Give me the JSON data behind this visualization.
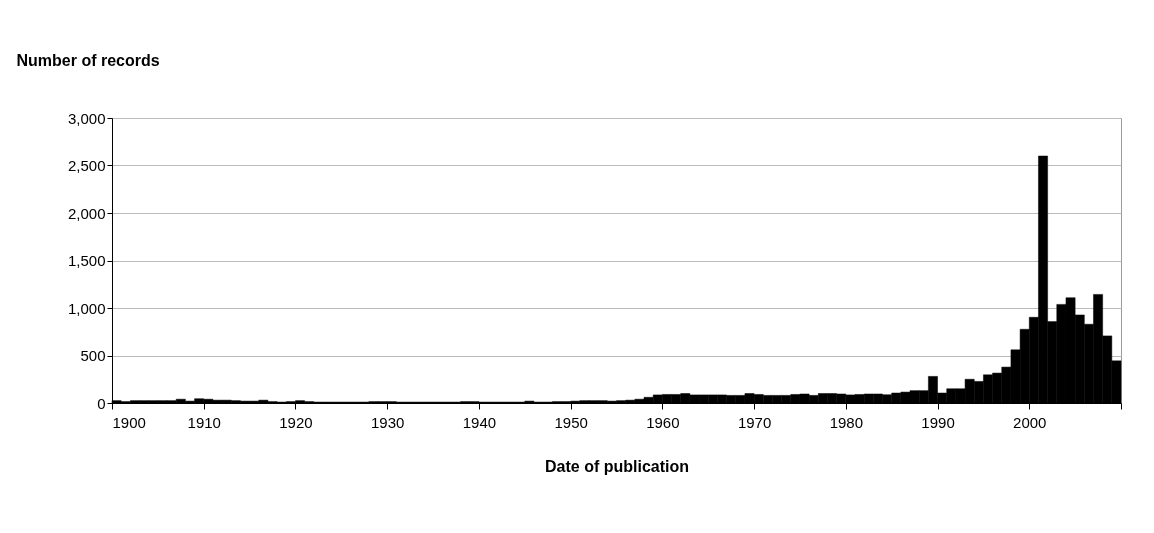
{
  "chart_data": {
    "type": "histogram",
    "xlabel": "Date of publication",
    "ylabel": "Number of records",
    "bins": [
      1900,
      1901,
      1902,
      1903,
      1904,
      1905,
      1906,
      1907,
      1908,
      1909,
      1910,
      1911,
      1912,
      1913,
      1914,
      1915,
      1916,
      1917,
      1918,
      1919,
      1920,
      1921,
      1922,
      1923,
      1924,
      1925,
      1926,
      1927,
      1928,
      1929,
      1930,
      1931,
      1932,
      1933,
      1934,
      1935,
      1936,
      1937,
      1938,
      1939,
      1940,
      1941,
      1942,
      1943,
      1944,
      1945,
      1946,
      1947,
      1948,
      1949,
      1950,
      1951,
      1952,
      1953,
      1954,
      1955,
      1956,
      1957,
      1958,
      1959,
      1960,
      1961,
      1962,
      1963,
      1964,
      1965,
      1966,
      1967,
      1968,
      1969,
      1970,
      1971,
      1972,
      1973,
      1974,
      1975,
      1976,
      1977,
      1978,
      1979,
      1980,
      1981,
      1982,
      1983,
      1984,
      1985,
      1986,
      1987,
      1988,
      1989,
      1990,
      1991,
      1992,
      1993,
      1994,
      1995,
      1996,
      1997,
      1998,
      1999,
      2000,
      2001,
      2002,
      2003,
      2004,
      2005,
      2006,
      2007,
      2008,
      2009,
      2010
    ],
    "values": [
      25,
      15,
      25,
      25,
      25,
      25,
      25,
      40,
      20,
      45,
      40,
      30,
      30,
      25,
      20,
      20,
      30,
      15,
      10,
      15,
      25,
      15,
      10,
      10,
      10,
      10,
      10,
      10,
      15,
      15,
      15,
      10,
      10,
      10,
      10,
      10,
      10,
      10,
      15,
      15,
      10,
      10,
      10,
      10,
      10,
      20,
      10,
      10,
      15,
      15,
      20,
      25,
      25,
      25,
      20,
      25,
      30,
      40,
      60,
      85,
      90,
      90,
      100,
      85,
      85,
      85,
      85,
      80,
      80,
      100,
      90,
      80,
      80,
      80,
      90,
      95,
      80,
      100,
      100,
      95,
      85,
      90,
      95,
      95,
      87,
      105,
      115,
      130,
      130,
      280,
      105,
      150,
      150,
      250,
      227,
      297,
      315,
      378,
      560,
      776,
      902,
      2600,
      857,
      1038,
      1108,
      927,
      829,
      1143,
      706,
      444
    ],
    "color": "#000000",
    "xlim": [
      1900,
      2010
    ],
    "xticks": [
      1900,
      1910,
      1920,
      1930,
      1940,
      1950,
      1960,
      1970,
      1980,
      1990,
      2000,
      {
        "value": 2010,
        "label": null
      }
    ],
    "ylim": [
      0,
      3000
    ],
    "yticks": [
      0,
      500,
      {
        "value": 1000,
        "label": "1,000"
      },
      {
        "value": 1500,
        "label": "1,500"
      },
      {
        "value": 2000,
        "label": "2,000"
      },
      {
        "value": 2500,
        "label": "2,500"
      },
      {
        "value": 3000,
        "label": "3,000"
      }
    ],
    "grid": "y"
  }
}
